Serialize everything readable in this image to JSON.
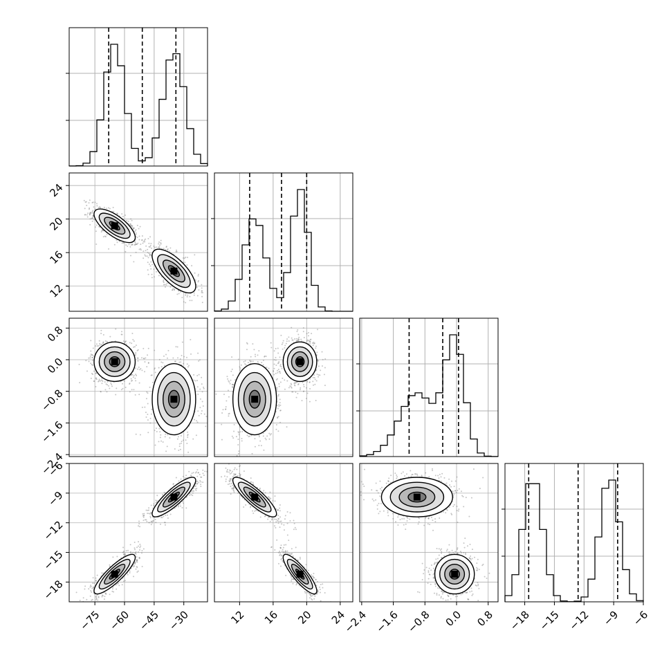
{
  "chart_data": {
    "type": "corner",
    "grid": true,
    "colors": {
      "line": "#000000",
      "grid": "#b0b0b0",
      "density": "#7f7f7f",
      "background": "#ffffff"
    },
    "variables": [
      {
        "key": "p0",
        "ticks": [
          -75,
          -60,
          -45,
          -30
        ],
        "tick_labels": [
          "−75",
          "−60",
          "−45",
          "−30"
        ],
        "range": [
          -88,
          -18
        ]
      },
      {
        "key": "p1",
        "ticks": [
          12,
          16,
          20,
          24
        ],
        "tick_labels": [
          "12",
          "16",
          "20",
          "24"
        ],
        "range": [
          9.0,
          25.5
        ]
      },
      {
        "key": "p2",
        "ticks": [
          -2.4,
          -1.6,
          -0.8,
          0.0,
          0.8
        ],
        "tick_labels": [
          "−2.4",
          "−1.6",
          "−0.8",
          "0.0",
          "0.8"
        ],
        "range": [
          -2.45,
          1.05
        ]
      },
      {
        "key": "p3",
        "ticks": [
          -18,
          -15,
          -12,
          -9,
          -6
        ],
        "tick_labels": [
          "−18",
          "−15",
          "−12",
          "−9",
          "−6"
        ],
        "range": [
          -20.0,
          -6.0
        ]
      }
    ],
    "quantiles": [
      [
        -68,
        -51,
        -34
      ],
      [
        13.2,
        17.0,
        20.0
      ],
      [
        -1.2,
        -0.35,
        0.05
      ],
      [
        -17.6,
        -12.6,
        -8.6
      ]
    ],
    "modes": [
      [
        {
          "mean": [
            -65,
            19.2,
            -0.05,
            -17.2
          ],
          "sd": [
            5.2,
            1.0,
            0.25,
            1.0
          ],
          "weight": 1
        }
      ],
      [
        {
          "mean": [
            -35,
            13.8,
            -1.0,
            -9.4
          ],
          "sd": [
            5.5,
            1.3,
            0.45,
            1.0
          ],
          "weight": 1
        }
      ]
    ],
    "pair_correlations": {
      "0-1": -0.7,
      "0-2": 0.0,
      "0-3": 0.85,
      "1-2": 0.0,
      "1-3": -0.85,
      "2-3": 0.0
    }
  }
}
